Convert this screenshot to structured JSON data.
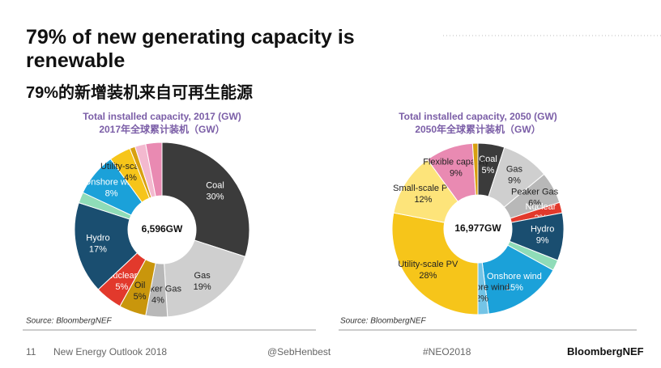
{
  "slide": {
    "title": "79% of new generating capacity is renewable",
    "subtitle": "79%的新增装机来自可再生能源",
    "page_number": "11",
    "footer_left": "New Energy Outlook 2018",
    "handle": "@SebHenbest",
    "hashtag": "#NEO2018",
    "brand": "BloombergNEF"
  },
  "chart_data": [
    {
      "type": "pie",
      "title": "Total installed capacity, 2017 (GW)",
      "subtitle": "2017年全球累计装机（GW）",
      "center_label": "6,596GW",
      "source": "Source: BloombergNEF",
      "categories": [
        "Coal",
        "Gas",
        "Peaker Gas",
        "Oil",
        "Nuclear",
        "Hydro",
        null,
        "Onshore wind",
        "Utility-scale PV",
        null,
        null,
        null
      ],
      "values": [
        30,
        19,
        4,
        5,
        5,
        17,
        2,
        8,
        4,
        1,
        2,
        3
      ],
      "value_labels": [
        "30%",
        "19%",
        "4%",
        "5%",
        "5%",
        "17%",
        null,
        "8%",
        "4%",
        null,
        null,
        null
      ],
      "colors": [
        "#3b3b3b",
        "#cfcfcf",
        "#b8b8b8",
        "#c9960c",
        "#e2392c",
        "#1a4e70",
        "#8fdcb8",
        "#1ba1d9",
        "#f6c51a",
        "#d8a010",
        "#f3b9cf",
        "#e98ab2"
      ]
    },
    {
      "type": "pie",
      "title": "Total installed capacity, 2050 (GW)",
      "subtitle": "2050年全球累计装机（GW）",
      "center_label": "16,977GW",
      "source": "Source: BloombergNEF",
      "categories": [
        "Coal",
        "Gas",
        "Peaker Gas",
        "Nuclear",
        "Hydro",
        null,
        "Onshore wind",
        "Offshore wind",
        "Utility-scale PV",
        "Small-scale PV",
        "Flexible capacity",
        null
      ],
      "values": [
        5,
        9,
        6,
        2,
        9,
        2,
        15,
        2,
        28,
        12,
        9,
        1
      ],
      "value_labels": [
        "5%",
        "9%",
        "6%",
        "2%",
        "9%",
        null,
        "15%",
        "2%",
        "28%",
        "12%",
        "9%",
        null
      ],
      "colors": [
        "#3b3b3b",
        "#cfcfcf",
        "#b8b8b8",
        "#e2392c",
        "#1a4e70",
        "#8fdcb8",
        "#1ba1d9",
        "#74c4e6",
        "#f6c51a",
        "#fde47a",
        "#e98ab2",
        "#d8a010"
      ]
    }
  ]
}
